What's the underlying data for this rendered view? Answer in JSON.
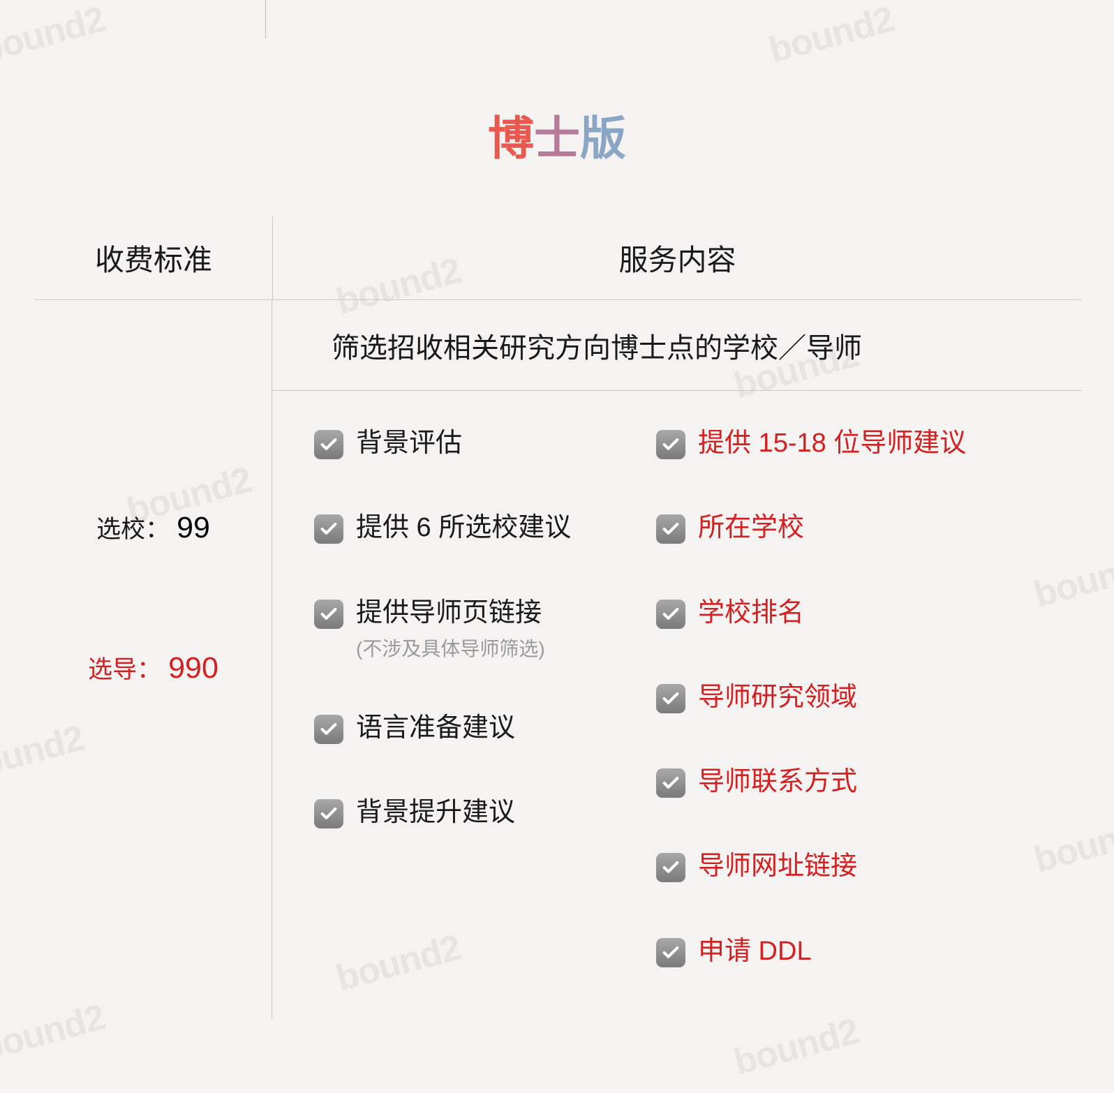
{
  "title": {
    "char1": "博",
    "char2": "士",
    "char3": "版"
  },
  "headers": {
    "left": "收费标准",
    "right": "服务内容"
  },
  "prices": [
    {
      "label": "选校：",
      "value": "99",
      "color": "black"
    },
    {
      "label": "选导：",
      "value": "990",
      "color": "red"
    }
  ],
  "subtitle": "筛选招收相关研究方向博士点的学校／导师",
  "items_left": [
    {
      "text": "背景评估",
      "subtext": null
    },
    {
      "text": "提供 6 所选校建议",
      "subtext": null
    },
    {
      "text": "提供导师页链接",
      "subtext": "(不涉及具体导师筛选)"
    },
    {
      "text": "语言准备建议",
      "subtext": null
    },
    {
      "text": "背景提升建议",
      "subtext": null
    }
  ],
  "items_right": [
    {
      "text": "提供 15-18 位导师建议"
    },
    {
      "text": "所在学校"
    },
    {
      "text": "学校排名"
    },
    {
      "text": "导师研究领域"
    },
    {
      "text": "导师联系方式"
    },
    {
      "text": "导师网址链接"
    },
    {
      "text": "申请 DDL"
    }
  ],
  "watermark_text": "bound2",
  "colors": {
    "background": "#f5f2f2",
    "text_black": "#1a1a1a",
    "text_red": "#d32020",
    "text_gray": "#9a9a9a",
    "border": "#c8c8c8",
    "watermark": "#e8e4e4",
    "title_red": "#e85a4f",
    "title_purple": "#b87a9a",
    "title_blue": "#8ba6c4",
    "check_bg_top": "#a8a8a8",
    "check_bg_bottom": "#7a7a7a"
  }
}
